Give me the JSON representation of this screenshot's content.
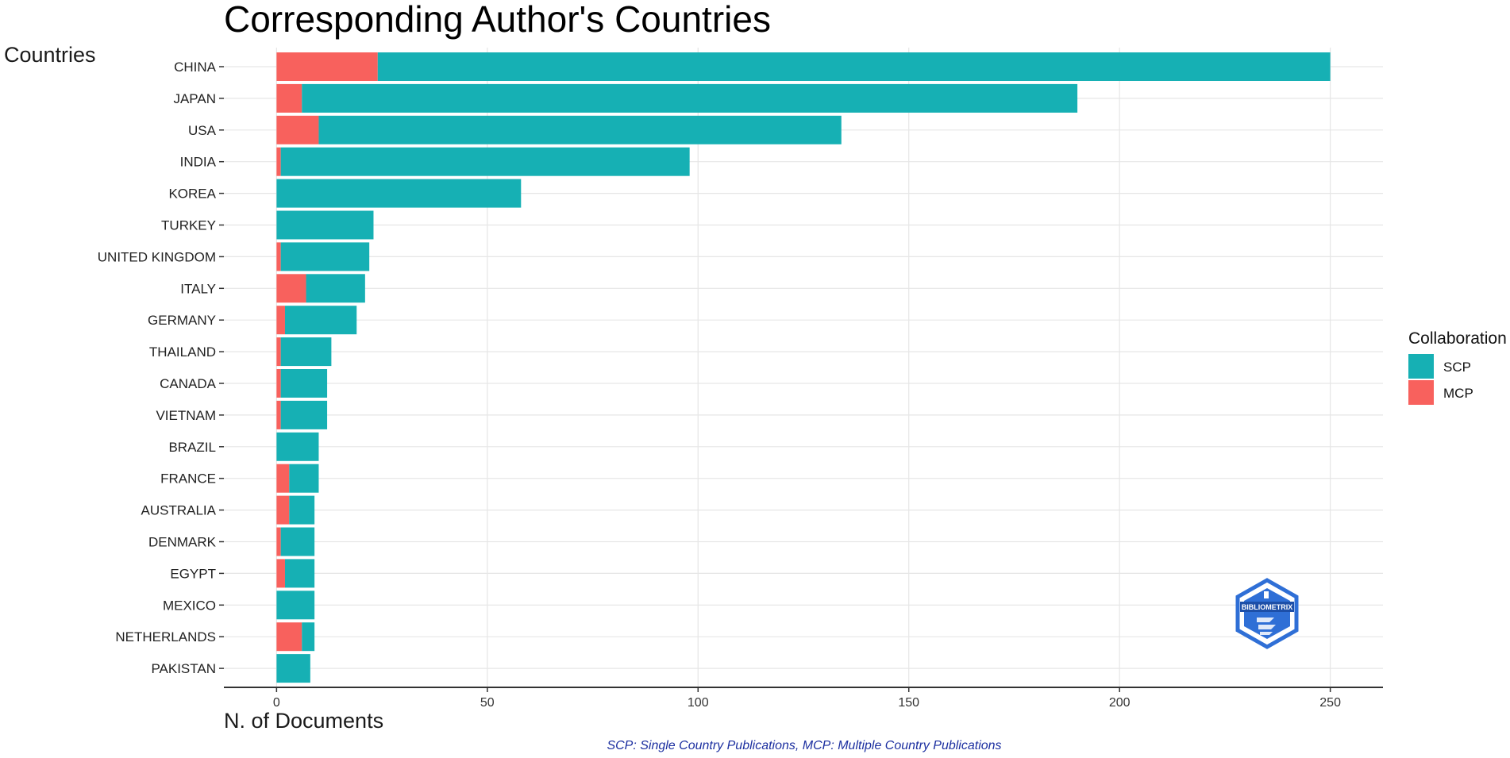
{
  "chart_data": {
    "type": "bar",
    "orientation": "horizontal",
    "stacked": true,
    "title": "Corresponding Author's Countries",
    "ylabel": "Countries",
    "xlabel": "N. of Documents",
    "categories": [
      "CHINA",
      "JAPAN",
      "USA",
      "INDIA",
      "KOREA",
      "TURKEY",
      "UNITED KINGDOM",
      "ITALY",
      "GERMANY",
      "THAILAND",
      "CANADA",
      "VIETNAM",
      "BRAZIL",
      "FRANCE",
      "AUSTRALIA",
      "DENMARK",
      "EGYPT",
      "MEXICO",
      "NETHERLANDS",
      "PAKISTAN"
    ],
    "series": [
      {
        "name": "MCP",
        "color": "#f8615d",
        "values": [
          24,
          6,
          10,
          1,
          0,
          0,
          1,
          7,
          2,
          1,
          1,
          1,
          0,
          3,
          3,
          1,
          2,
          0,
          6,
          0
        ]
      },
      {
        "name": "SCP",
        "color": "#16b0b4",
        "values": [
          226,
          184,
          124,
          97,
          58,
          23,
          21,
          14,
          17,
          12,
          11,
          11,
          10,
          7,
          6,
          8,
          7,
          9,
          3,
          8
        ]
      }
    ],
    "xlim": [
      -12.5,
      262.5
    ],
    "xticks": [
      0,
      50,
      100,
      150,
      200,
      250
    ],
    "grid": true,
    "legend": {
      "title": "Collaboration",
      "position": "right",
      "entries": [
        {
          "label": "SCP",
          "color": "#16b0b4"
        },
        {
          "label": "MCP",
          "color": "#f8615d"
        }
      ]
    },
    "caption": "SCP: Single Country Publications, MCP: Multiple Country Publications"
  },
  "logo": {
    "text": "BIBLIOMETRIX",
    "color": "#2f6fd6"
  }
}
